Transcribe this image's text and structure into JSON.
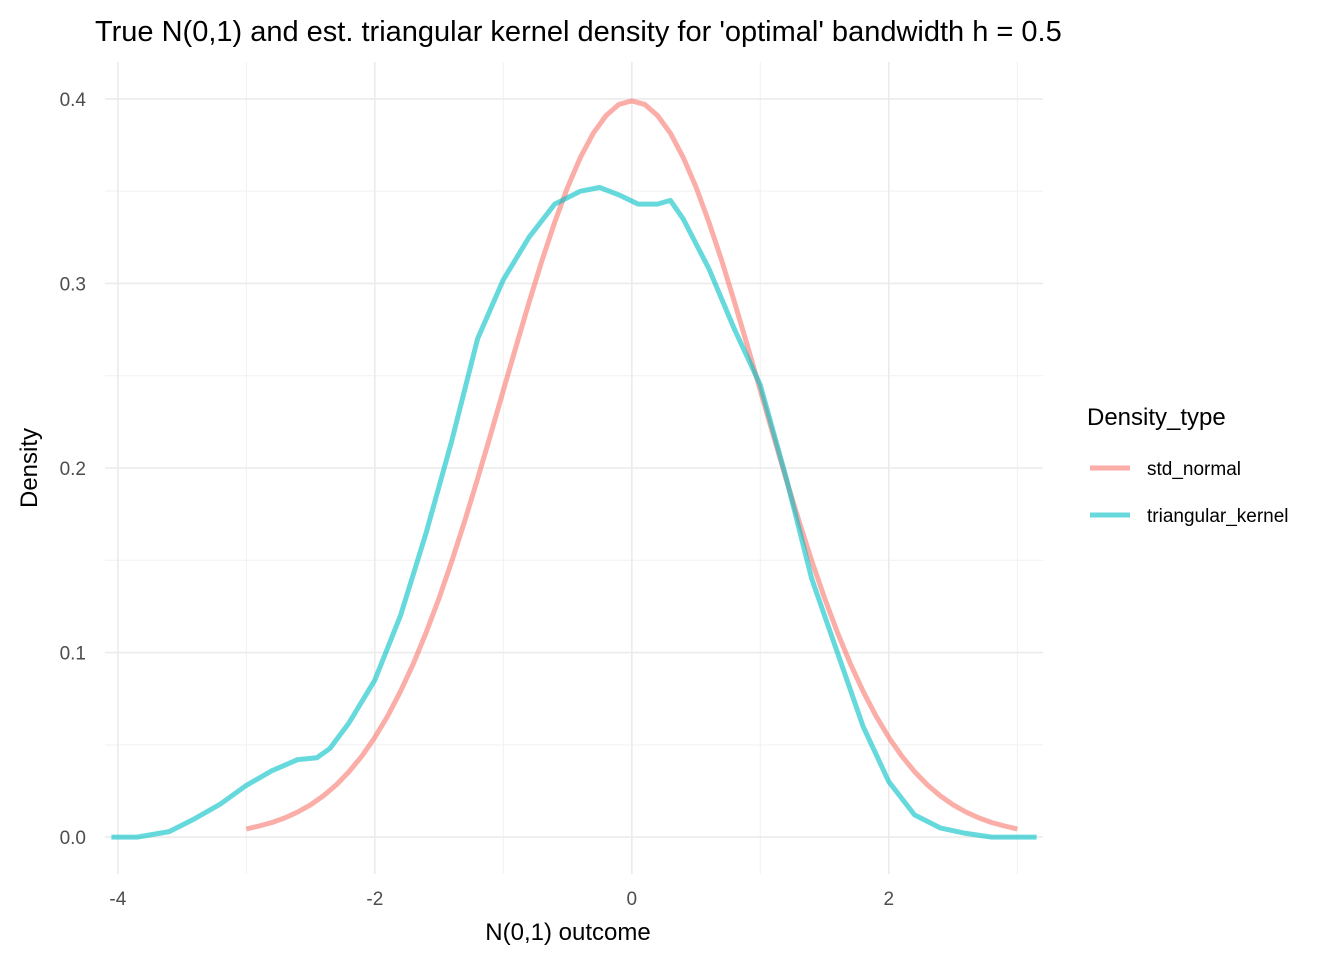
{
  "chart_data": {
    "type": "line",
    "title": "True N(0,1) and est. triangular kernel density for 'optimal' bandwidth h = 0.5",
    "xlabel": "N(0,1) outcome",
    "ylabel": "Density",
    "xlim": [
      -4.1,
      3.2
    ],
    "ylim": [
      -0.02,
      0.42
    ],
    "x_ticks": [
      -4,
      -2,
      0,
      2
    ],
    "x_tick_labels": [
      "-4",
      "-2",
      "0",
      "2"
    ],
    "y_ticks": [
      0.0,
      0.1,
      0.2,
      0.3,
      0.4
    ],
    "y_tick_labels": [
      "0.0",
      "0.1",
      "0.2",
      "0.3",
      "0.4"
    ],
    "grid": true,
    "legend": {
      "title": "Density_type",
      "position": "right"
    },
    "series": [
      {
        "name": "std_normal",
        "color": "#F8766D",
        "x": [
          -3.0,
          -2.9,
          -2.8,
          -2.7,
          -2.6,
          -2.5,
          -2.4,
          -2.3,
          -2.2,
          -2.1,
          -2.0,
          -1.9,
          -1.8,
          -1.7,
          -1.6,
          -1.5,
          -1.4,
          -1.3,
          -1.2,
          -1.1,
          -1.0,
          -0.9,
          -0.8,
          -0.7,
          -0.6,
          -0.5,
          -0.4,
          -0.3,
          -0.2,
          -0.1,
          0.0,
          0.1,
          0.2,
          0.3,
          0.4,
          0.5,
          0.6,
          0.7,
          0.8,
          0.9,
          1.0,
          1.1,
          1.2,
          1.3,
          1.4,
          1.5,
          1.6,
          1.7,
          1.8,
          1.9,
          2.0,
          2.1,
          2.2,
          2.3,
          2.4,
          2.5,
          2.6,
          2.7,
          2.8,
          2.9,
          3.0
        ],
        "y": [
          0.0044,
          0.006,
          0.0079,
          0.0104,
          0.0136,
          0.0175,
          0.0224,
          0.0283,
          0.0355,
          0.044,
          0.054,
          0.0656,
          0.079,
          0.094,
          0.1109,
          0.1295,
          0.1497,
          0.1714,
          0.1942,
          0.2179,
          0.242,
          0.2661,
          0.2897,
          0.3123,
          0.3332,
          0.3521,
          0.3683,
          0.3814,
          0.391,
          0.397,
          0.3989,
          0.397,
          0.391,
          0.3814,
          0.3683,
          0.3521,
          0.3332,
          0.3123,
          0.2897,
          0.2661,
          0.242,
          0.2179,
          0.1942,
          0.1714,
          0.1497,
          0.1295,
          0.1109,
          0.094,
          0.079,
          0.0656,
          0.054,
          0.044,
          0.0355,
          0.0283,
          0.0224,
          0.0175,
          0.0136,
          0.0104,
          0.0079,
          0.006,
          0.0044
        ]
      },
      {
        "name": "triangular_kernel",
        "color": "#00BFC4",
        "x": [
          -4.05,
          -3.85,
          -3.6,
          -3.4,
          -3.2,
          -3.0,
          -2.8,
          -2.6,
          -2.45,
          -2.35,
          -2.2,
          -2.0,
          -1.8,
          -1.6,
          -1.4,
          -1.2,
          -1.0,
          -0.8,
          -0.6,
          -0.4,
          -0.25,
          -0.1,
          0.05,
          0.2,
          0.3,
          0.4,
          0.6,
          0.8,
          1.0,
          1.2,
          1.4,
          1.6,
          1.8,
          2.0,
          2.2,
          2.4,
          2.6,
          2.8,
          3.0,
          3.15
        ],
        "y": [
          0.0,
          0.0,
          0.003,
          0.01,
          0.018,
          0.028,
          0.036,
          0.042,
          0.043,
          0.048,
          0.062,
          0.085,
          0.12,
          0.165,
          0.215,
          0.27,
          0.302,
          0.325,
          0.343,
          0.35,
          0.352,
          0.348,
          0.343,
          0.343,
          0.345,
          0.335,
          0.308,
          0.275,
          0.245,
          0.195,
          0.14,
          0.1,
          0.06,
          0.03,
          0.012,
          0.005,
          0.002,
          0.0,
          0.0,
          0.0
        ]
      }
    ]
  }
}
